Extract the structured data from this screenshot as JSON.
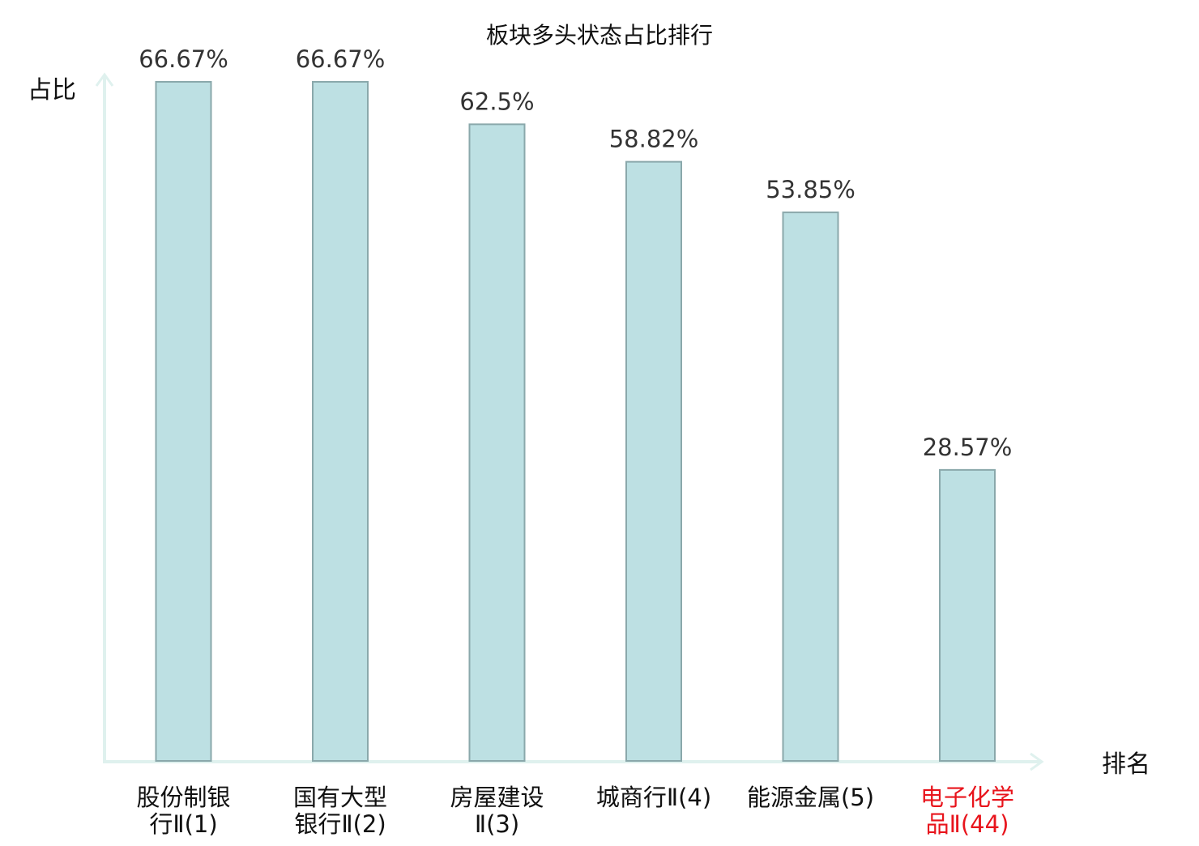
{
  "colors": {
    "bar_fill": "#bde0e3",
    "bar_stroke": "#8aa8ab",
    "axis": "#dff1ee",
    "text": "#333333",
    "title": "#111111",
    "highlight": "#e8141c"
  },
  "chart_data": {
    "type": "bar",
    "title": "板块多头状态占比排行",
    "ylabel": "占比",
    "xlabel": "排名",
    "unit": "%",
    "ylim": [
      0,
      70
    ],
    "grid": false,
    "categories": [
      {
        "lines": [
          "股份制银",
          "行Ⅱ(1)"
        ],
        "highlight": false
      },
      {
        "lines": [
          "国有大型",
          "银行Ⅱ(2)"
        ],
        "highlight": false
      },
      {
        "lines": [
          "房屋建设",
          "Ⅱ(3)"
        ],
        "highlight": false
      },
      {
        "lines": [
          "城商行Ⅱ(4)"
        ],
        "highlight": false
      },
      {
        "lines": [
          "能源金属(5)"
        ],
        "highlight": false
      },
      {
        "lines": [
          "电子化学",
          "品Ⅱ(44)"
        ],
        "highlight": true
      }
    ],
    "values": [
      66.67,
      66.67,
      62.5,
      58.82,
      53.85,
      28.57
    ],
    "value_labels": [
      "66.67%",
      "66.67%",
      "62.5%",
      "58.82%",
      "53.85%",
      "28.57%"
    ]
  }
}
